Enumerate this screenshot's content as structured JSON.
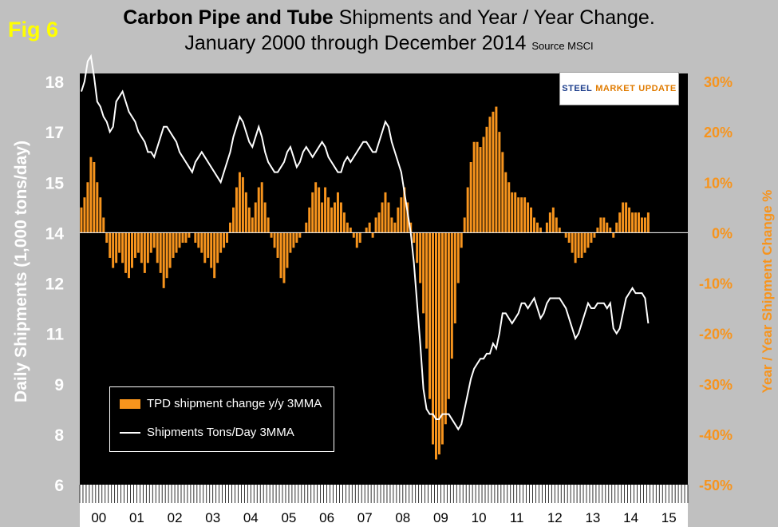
{
  "figure_label": "Fig 6",
  "title_bold": "Carbon Pipe and Tube",
  "title_rest": " Shipments and Year / Year Change.",
  "subtitle": "January 2000 through December 2014",
  "source": "Source MSCI",
  "logo": {
    "part1": "STEEL",
    "part2": "MARKET",
    "part3": "UPDATE"
  },
  "colors": {
    "bars": "#f7941d",
    "line": "#ffffff",
    "plot_bg": "#000000",
    "page_bg": "#c0c0c0",
    "right_axis": "#f7941d"
  },
  "chart_data": {
    "type": "bar+line",
    "title": "Carbon Pipe and Tube Shipments and Year / Year Change.",
    "ylabel_left": "Daily Shipments (1,000 tons/day)",
    "ylabel_right": "Year / Year Shipment Change %",
    "left_ticks": [
      "18",
      "17",
      "15",
      "14",
      "12",
      "11",
      "9",
      "8",
      "6"
    ],
    "right_ticks": [
      "30%",
      "20%",
      "10%",
      "0%",
      "-10%",
      "-20%",
      "-30%",
      "-40%",
      "-50%"
    ],
    "right_ylim": [
      -50,
      30
    ],
    "x_categories": [
      "00",
      "01",
      "02",
      "03",
      "04",
      "05",
      "06",
      "07",
      "08",
      "09",
      "10",
      "11",
      "12",
      "13",
      "14",
      "15"
    ],
    "bar_series_name": "TPD shipment change y/y 3MMA",
    "line_series_name": "Shipments Tons/Day 3MMA",
    "bar_values_pct": [
      5,
      7,
      10,
      15,
      14,
      10,
      7,
      3,
      -2,
      -5,
      -7,
      -6,
      -4,
      -6,
      -8,
      -9,
      -7,
      -5,
      -4,
      -6,
      -8,
      -6,
      -4,
      -3,
      -6,
      -8,
      -11,
      -9,
      -7,
      -5,
      -4,
      -3,
      -2,
      -2,
      -1,
      0,
      -2,
      -3,
      -4,
      -6,
      -5,
      -7,
      -9,
      -6,
      -4,
      -3,
      -2,
      2,
      5,
      9,
      12,
      11,
      8,
      5,
      3,
      6,
      9,
      10,
      6,
      3,
      -1,
      -3,
      -5,
      -9,
      -10,
      -7,
      -4,
      -3,
      -2,
      -1,
      0,
      2,
      5,
      8,
      10,
      9,
      6,
      9,
      7,
      5,
      6,
      8,
      6,
      4,
      2,
      1,
      -1,
      -3,
      -2,
      0,
      1,
      2,
      -1,
      3,
      4,
      6,
      8,
      6,
      3,
      2,
      5,
      7,
      9,
      6,
      2,
      -2,
      -6,
      -10,
      -16,
      -23,
      -33,
      -42,
      -45,
      -44,
      -42,
      -38,
      -33,
      -25,
      -18,
      -10,
      -3,
      3,
      9,
      14,
      18,
      18,
      17,
      19,
      21,
      23,
      24,
      25,
      20,
      16,
      12,
      10,
      8,
      8,
      7,
      7,
      7,
      6,
      5,
      3,
      2,
      1,
      0,
      2,
      4,
      5,
      3,
      1,
      0,
      -1,
      -2,
      -4,
      -6,
      -5,
      -5,
      -4,
      -3,
      -2,
      -1,
      1,
      3,
      3,
      2,
      1,
      -1,
      2,
      4,
      6,
      6,
      5,
      4,
      4,
      4,
      3,
      3,
      4
    ],
    "line_values_index": [
      28,
      30,
      34,
      35,
      31,
      26,
      25,
      23,
      22,
      20,
      21,
      26,
      27,
      28,
      26,
      24,
      23,
      22,
      20,
      19,
      18,
      16,
      16,
      15,
      17,
      19,
      21,
      21,
      20,
      19,
      18,
      16,
      15,
      14,
      13,
      12,
      14,
      15,
      16,
      15,
      14,
      13,
      12,
      11,
      10,
      12,
      14,
      16,
      19,
      21,
      23,
      22,
      20,
      18,
      17,
      19,
      21,
      19,
      16,
      14,
      13,
      12,
      12,
      13,
      14,
      16,
      17,
      15,
      13,
      14,
      16,
      17,
      16,
      15,
      16,
      17,
      18,
      17,
      15,
      14,
      13,
      12,
      12,
      14,
      15,
      14,
      15,
      16,
      17,
      18,
      18,
      17,
      16,
      16,
      18,
      20,
      22,
      21,
      18,
      16,
      14,
      12,
      8,
      4,
      0,
      -6,
      -14,
      -22,
      -31,
      -35,
      -36,
      -36,
      -37,
      -37,
      -36,
      -36,
      -36,
      -37,
      -38,
      -39,
      -38,
      -35,
      -32,
      -29,
      -27,
      -26,
      -25,
      -25,
      -24,
      -24,
      -22,
      -23,
      -20,
      -16,
      -16,
      -17,
      -18,
      -17,
      -16,
      -14,
      -14,
      -15,
      -14,
      -13,
      -15,
      -17,
      -16,
      -14,
      -13,
      -13,
      -13,
      -13,
      -14,
      -15,
      -17,
      -19,
      -21,
      -20,
      -18,
      -16,
      -14,
      -15,
      -15,
      -14,
      -14,
      -14,
      -15,
      -14,
      -19,
      -20,
      -19,
      -16,
      -13,
      -12,
      -11,
      -12,
      -12,
      -12,
      -13,
      -18
    ]
  },
  "legend": {
    "bar_label": "TPD shipment change y/y 3MMA",
    "line_label": "Shipments Tons/Day 3MMA"
  }
}
